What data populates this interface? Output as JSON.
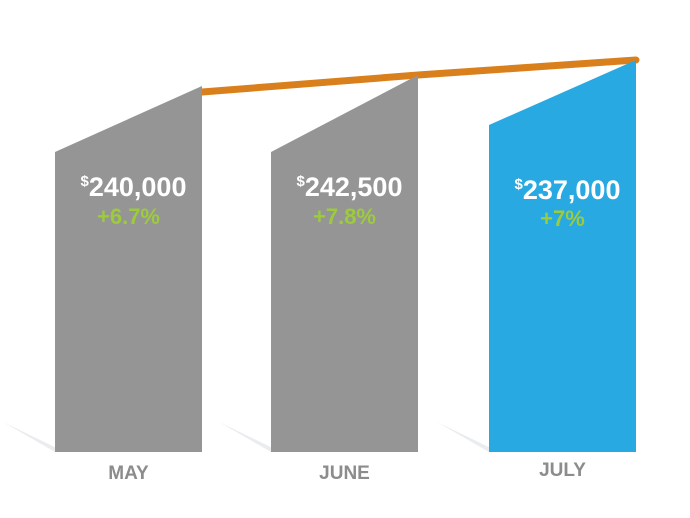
{
  "chart_data": {
    "type": "bar",
    "categories": [
      "MAY",
      "JUNE",
      "JULY"
    ],
    "values": [
      240000,
      242500,
      237000
    ],
    "value_labels": [
      "240,000",
      "242,500",
      "237,000"
    ],
    "currency_symbol": "$",
    "changes": [
      "+6.7%",
      "+7.8%",
      "+7%"
    ],
    "changes_numeric": [
      6.7,
      7.8,
      7
    ],
    "highlight_index": 2,
    "colors": {
      "bar": "#959595",
      "highlight_bar": "#29a9e1",
      "trend_line": "#d9801d",
      "change_text": "#9ccb3b",
      "change_text_highlight": "#9ccb3b",
      "month_label": "#8c8c8c",
      "shadow": "#e4e8ec"
    },
    "title": "",
    "xlabel": "",
    "ylabel": ""
  }
}
